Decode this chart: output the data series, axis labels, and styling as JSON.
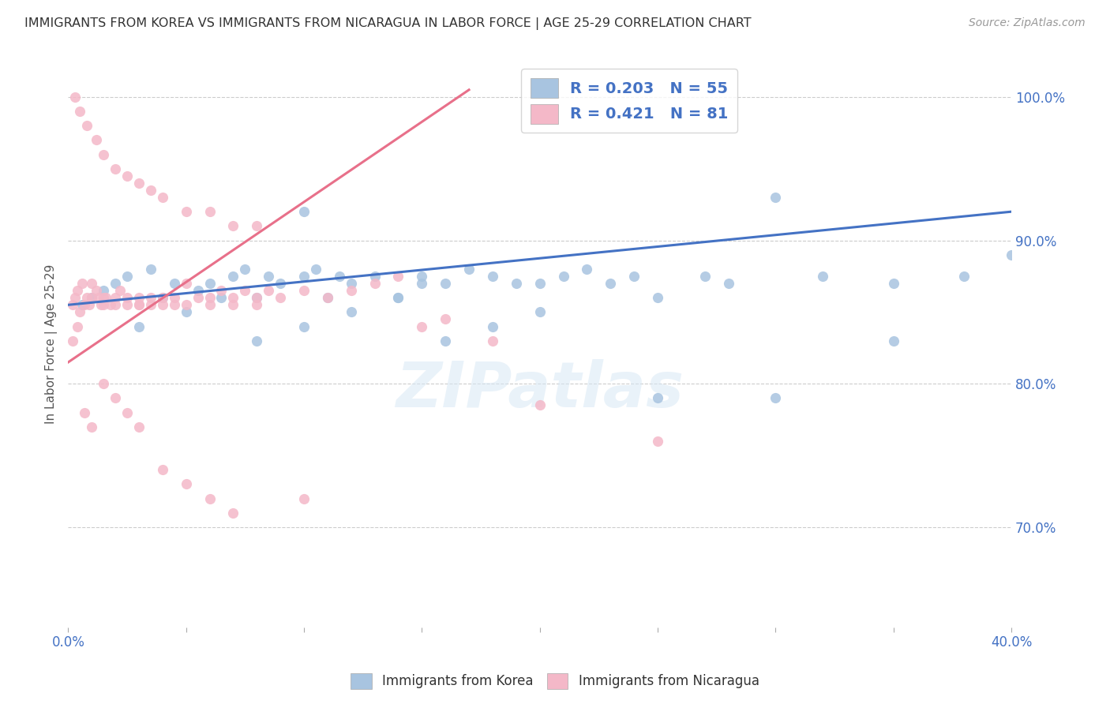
{
  "title": "IMMIGRANTS FROM KOREA VS IMMIGRANTS FROM NICARAGUA IN LABOR FORCE | AGE 25-29 CORRELATION CHART",
  "source": "Source: ZipAtlas.com",
  "ylabel": "In Labor Force | Age 25-29",
  "legend_label_1": "Immigrants from Korea",
  "legend_label_2": "Immigrants from Nicaragua",
  "R1": 0.203,
  "N1": 55,
  "R2": 0.421,
  "N2": 81,
  "color1": "#a8c4e0",
  "color1_line": "#4472c4",
  "color2": "#f4b8c8",
  "color2_line": "#e8708a",
  "xlim": [
    0.0,
    0.4
  ],
  "ylim": [
    0.63,
    1.025
  ],
  "yticks": [
    0.7,
    0.8,
    0.9,
    1.0
  ],
  "ytick_labels_right": [
    "70.0%",
    "80.0%",
    "90.0%",
    "100.0%"
  ],
  "xticks": [
    0.0,
    0.05,
    0.1,
    0.15,
    0.2,
    0.25,
    0.3,
    0.35,
    0.4
  ],
  "xtick_labels": [
    "0.0%",
    "",
    "",
    "",
    "",
    "",
    "",
    "",
    "40.0%"
  ],
  "watermark": "ZIPatlas",
  "background_color": "#ffffff",
  "grid_color": "#cccccc",
  "text_color": "#4472c4",
  "title_color": "#333333",
  "korea_x": [
    0.006,
    0.01,
    0.015,
    0.02,
    0.025,
    0.03,
    0.035,
    0.04,
    0.045,
    0.05,
    0.055,
    0.06,
    0.065,
    0.07,
    0.075,
    0.08,
    0.085,
    0.09,
    0.1,
    0.105,
    0.11,
    0.115,
    0.12,
    0.13,
    0.14,
    0.15,
    0.16,
    0.17,
    0.18,
    0.19,
    0.2,
    0.21,
    0.22,
    0.23,
    0.24,
    0.25,
    0.27,
    0.28,
    0.3,
    0.32,
    0.35,
    0.38,
    0.4,
    0.08,
    0.1,
    0.12,
    0.14,
    0.16,
    0.18,
    0.2,
    0.25,
    0.3,
    0.35,
    0.1,
    0.15
  ],
  "korea_y": [
    0.855,
    0.86,
    0.865,
    0.87,
    0.875,
    0.84,
    0.88,
    0.86,
    0.87,
    0.85,
    0.865,
    0.87,
    0.86,
    0.875,
    0.88,
    0.86,
    0.875,
    0.87,
    0.875,
    0.88,
    0.86,
    0.875,
    0.87,
    0.875,
    0.86,
    0.875,
    0.87,
    0.88,
    0.875,
    0.87,
    0.87,
    0.875,
    0.88,
    0.87,
    0.875,
    0.86,
    0.875,
    0.87,
    0.93,
    0.875,
    0.87,
    0.875,
    0.89,
    0.83,
    0.84,
    0.85,
    0.86,
    0.83,
    0.84,
    0.85,
    0.79,
    0.79,
    0.83,
    0.92,
    0.87
  ],
  "nicaragua_x": [
    0.002,
    0.003,
    0.004,
    0.005,
    0.006,
    0.007,
    0.008,
    0.009,
    0.01,
    0.01,
    0.012,
    0.013,
    0.014,
    0.015,
    0.015,
    0.016,
    0.018,
    0.02,
    0.02,
    0.022,
    0.025,
    0.025,
    0.03,
    0.03,
    0.03,
    0.035,
    0.035,
    0.04,
    0.04,
    0.045,
    0.045,
    0.05,
    0.05,
    0.055,
    0.06,
    0.06,
    0.065,
    0.07,
    0.07,
    0.075,
    0.08,
    0.08,
    0.085,
    0.09,
    0.1,
    0.11,
    0.12,
    0.13,
    0.14,
    0.15,
    0.16,
    0.18,
    0.2,
    0.003,
    0.005,
    0.008,
    0.012,
    0.015,
    0.02,
    0.025,
    0.03,
    0.035,
    0.04,
    0.05,
    0.06,
    0.07,
    0.08,
    0.002,
    0.004,
    0.007,
    0.01,
    0.015,
    0.02,
    0.025,
    0.03,
    0.04,
    0.05,
    0.06,
    0.07,
    0.1,
    0.25
  ],
  "nicaragua_y": [
    0.855,
    0.86,
    0.865,
    0.85,
    0.87,
    0.855,
    0.86,
    0.855,
    0.87,
    0.86,
    0.865,
    0.86,
    0.855,
    0.86,
    0.855,
    0.86,
    0.855,
    0.86,
    0.855,
    0.865,
    0.855,
    0.86,
    0.855,
    0.86,
    0.855,
    0.86,
    0.855,
    0.86,
    0.855,
    0.86,
    0.855,
    0.87,
    0.855,
    0.86,
    0.855,
    0.86,
    0.865,
    0.86,
    0.855,
    0.865,
    0.86,
    0.855,
    0.865,
    0.86,
    0.865,
    0.86,
    0.865,
    0.87,
    0.875,
    0.84,
    0.845,
    0.83,
    0.785,
    1.0,
    0.99,
    0.98,
    0.97,
    0.96,
    0.95,
    0.945,
    0.94,
    0.935,
    0.93,
    0.92,
    0.92,
    0.91,
    0.91,
    0.83,
    0.84,
    0.78,
    0.77,
    0.8,
    0.79,
    0.78,
    0.77,
    0.74,
    0.73,
    0.72,
    0.71,
    0.72,
    0.76
  ]
}
